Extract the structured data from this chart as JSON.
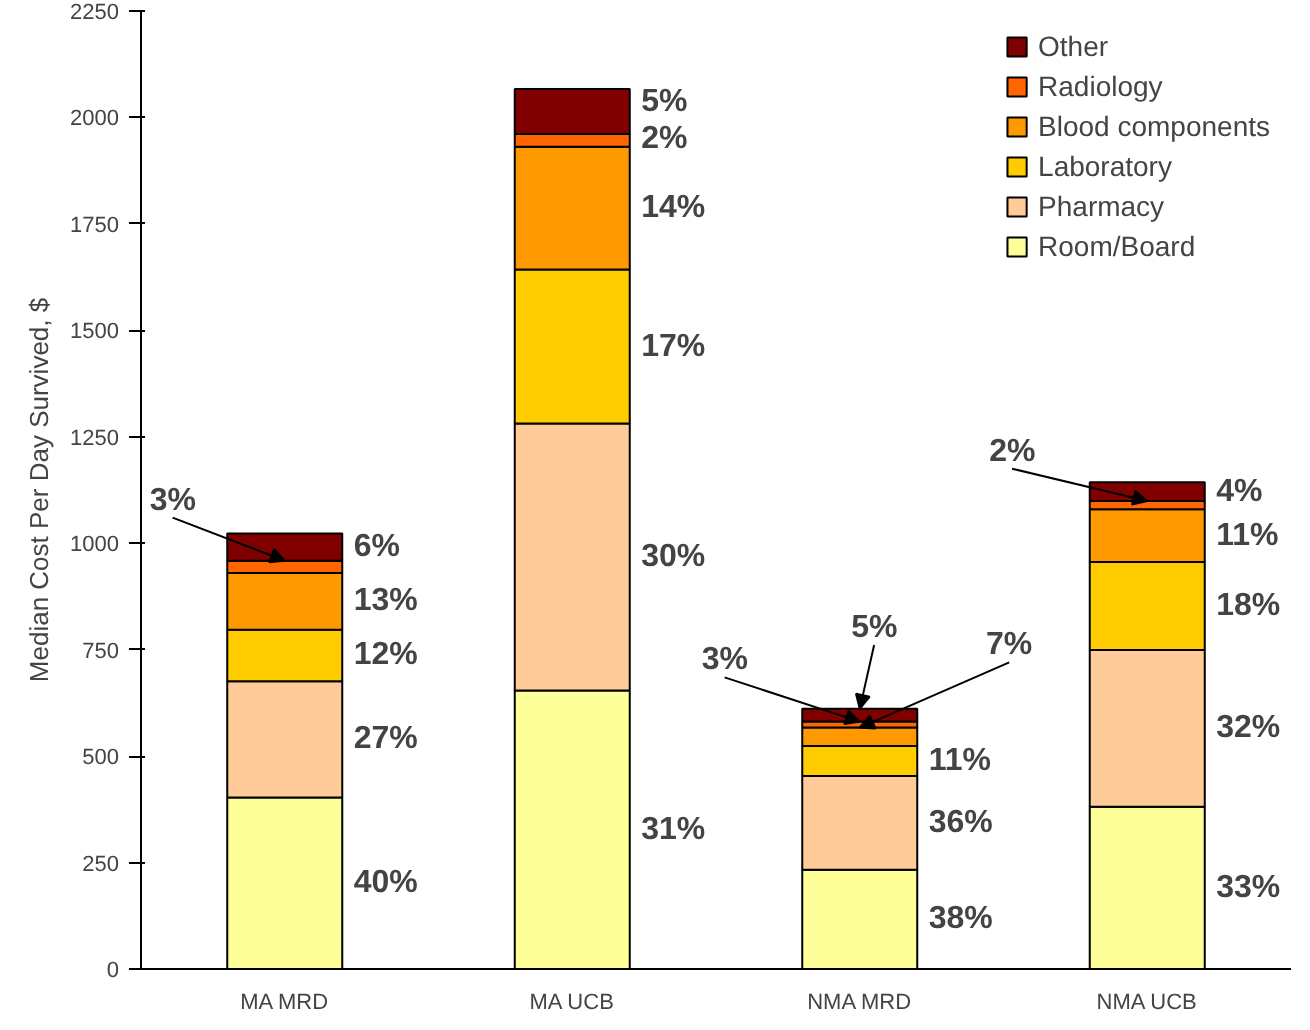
{
  "chart_data": {
    "type": "bar",
    "stacked": true,
    "ylabel": "Median Cost Per Day Survived, $",
    "categories": [
      "MA MRD",
      "MA UCB",
      "NMA MRD",
      "NMA UCB"
    ],
    "ylim": [
      0,
      2250
    ],
    "yticks": [
      0,
      250,
      500,
      750,
      1000,
      1250,
      1500,
      1750,
      2000,
      2250
    ],
    "grid": false,
    "legend": "top right",
    "series": [
      {
        "name": "Room/Board",
        "color": "#ffff99",
        "values": [
          403,
          654,
          233,
          381
        ]
      },
      {
        "name": "Pharmacy",
        "color": "#ffcc99",
        "values": [
          273,
          627,
          220,
          368
        ]
      },
      {
        "name": "Laboratory",
        "color": "#ffcc00",
        "values": [
          121,
          362,
          71,
          207
        ]
      },
      {
        "name": "Blood components",
        "color": "#ff9900",
        "values": [
          133,
          288,
          43,
          124
        ]
      },
      {
        "name": "Radiology",
        "color": "#ff6600",
        "values": [
          29,
          30,
          14,
          19
        ]
      },
      {
        "name": "Other",
        "color": "#800000",
        "values": [
          64,
          106,
          30,
          44
        ]
      }
    ],
    "annotations": [
      "40%",
      "27%",
      "12%",
      "13%",
      {
        "text": "3%",
        "x": "MA MRD",
        "y": 959
      },
      "6%",
      "31%",
      "30%",
      "17%",
      "14%",
      "2%",
      "5%",
      "38%",
      "36%",
      "11%",
      {
        "text": "7%",
        "x": "NMA MRD",
        "y": 567
      },
      {
        "text": "3%",
        "x": "NMA MRD",
        "y": 581
      },
      {
        "text": "5%",
        "x": "NMA MRD",
        "y": 611
      },
      "33%",
      "32%",
      "18%",
      "11%",
      {
        "text": "2%",
        "x": "NMA UCB",
        "y": 1099
      },
      "4%"
    ]
  }
}
